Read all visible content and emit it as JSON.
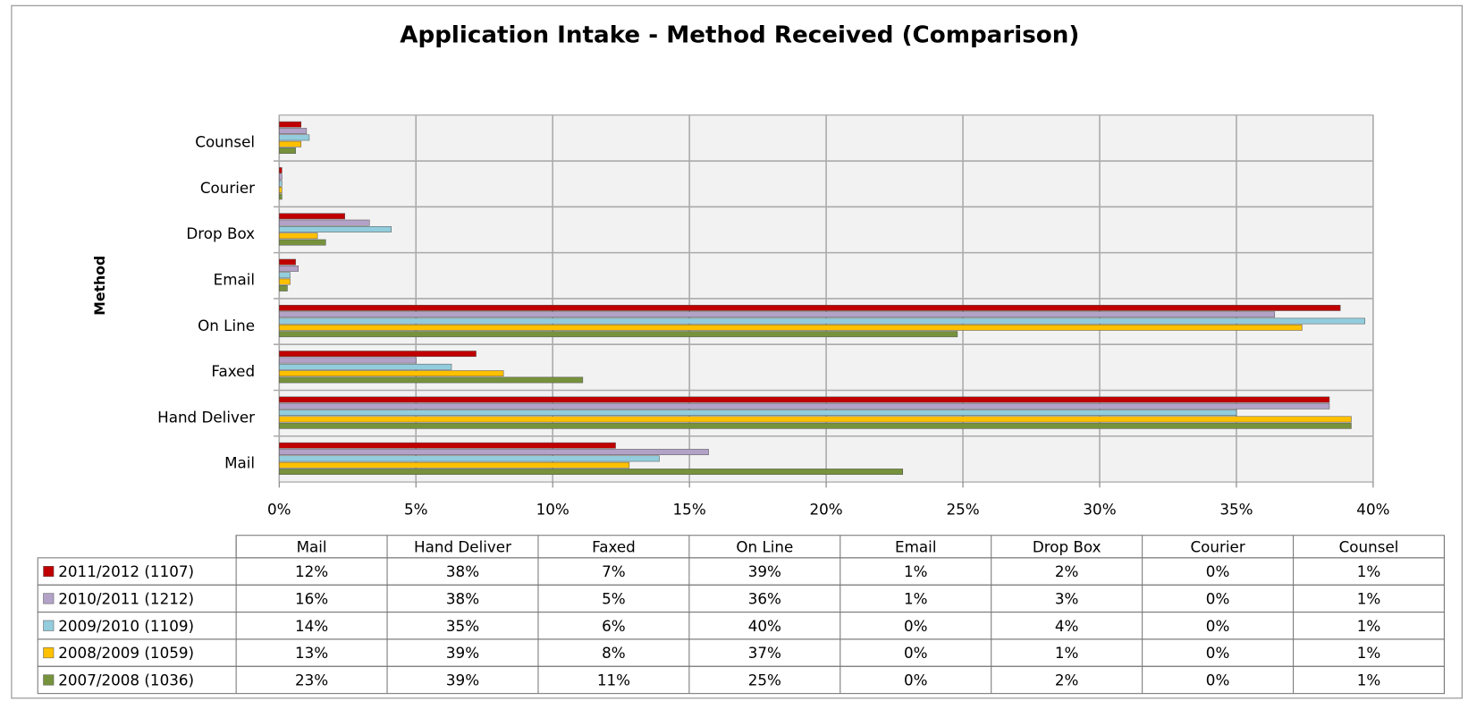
{
  "chart_data": {
    "type": "hbar",
    "title": "Application Intake - Method Received (Comparison)",
    "y_label": "Method",
    "categories": [
      "Mail",
      "Hand Deliver",
      "Faxed",
      "On Line",
      "Email",
      "Drop Box",
      "Courier",
      "Counsel"
    ],
    "series": [
      {
        "name": "2011/2012 (1107)",
        "color": "#c00000",
        "values": [
          12.3,
          38.4,
          7.2,
          38.8,
          0.6,
          2.4,
          0.1,
          0.8
        ],
        "value_labels": [
          "12%",
          "38%",
          "7%",
          "39%",
          "1%",
          "2%",
          "0%",
          "1%"
        ]
      },
      {
        "name": "2010/2011 (1212)",
        "color": "#b3a2c7",
        "values": [
          15.7,
          38.4,
          5.0,
          36.4,
          0.7,
          3.3,
          0.1,
          1.0
        ],
        "value_labels": [
          "16%",
          "38%",
          "5%",
          "36%",
          "1%",
          "3%",
          "0%",
          "1%"
        ]
      },
      {
        "name": "2009/2010 (1109)",
        "color": "#93cddd",
        "values": [
          13.9,
          35.0,
          6.3,
          39.7,
          0.4,
          4.1,
          0.1,
          1.1
        ],
        "value_labels": [
          "14%",
          "35%",
          "6%",
          "40%",
          "0%",
          "4%",
          "0%",
          "1%"
        ]
      },
      {
        "name": "2008/2009 (1059)",
        "color": "#ffc000",
        "values": [
          12.8,
          39.2,
          8.2,
          37.4,
          0.4,
          1.4,
          0.1,
          0.8
        ],
        "value_labels": [
          "13%",
          "39%",
          "8%",
          "37%",
          "0%",
          "1%",
          "0%",
          "1%"
        ]
      },
      {
        "name": "2007/2008 (1036)",
        "color": "#76923c",
        "values": [
          22.8,
          39.2,
          11.1,
          24.8,
          0.3,
          1.7,
          0.1,
          0.6
        ],
        "value_labels": [
          "23%",
          "39%",
          "11%",
          "25%",
          "0%",
          "2%",
          "0%",
          "1%"
        ]
      }
    ],
    "xlim": [
      0,
      40
    ],
    "xticks": [
      {
        "value": 0,
        "label": "0%"
      },
      {
        "value": 5,
        "label": "5%"
      },
      {
        "value": 10,
        "label": "10%"
      },
      {
        "value": 15,
        "label": "15%"
      },
      {
        "value": 20,
        "label": "20%"
      },
      {
        "value": 25,
        "label": "25%"
      },
      {
        "value": 30,
        "label": "30%"
      },
      {
        "value": 35,
        "label": "35%"
      },
      {
        "value": 40,
        "label": "40%"
      }
    ],
    "grid": true
  }
}
